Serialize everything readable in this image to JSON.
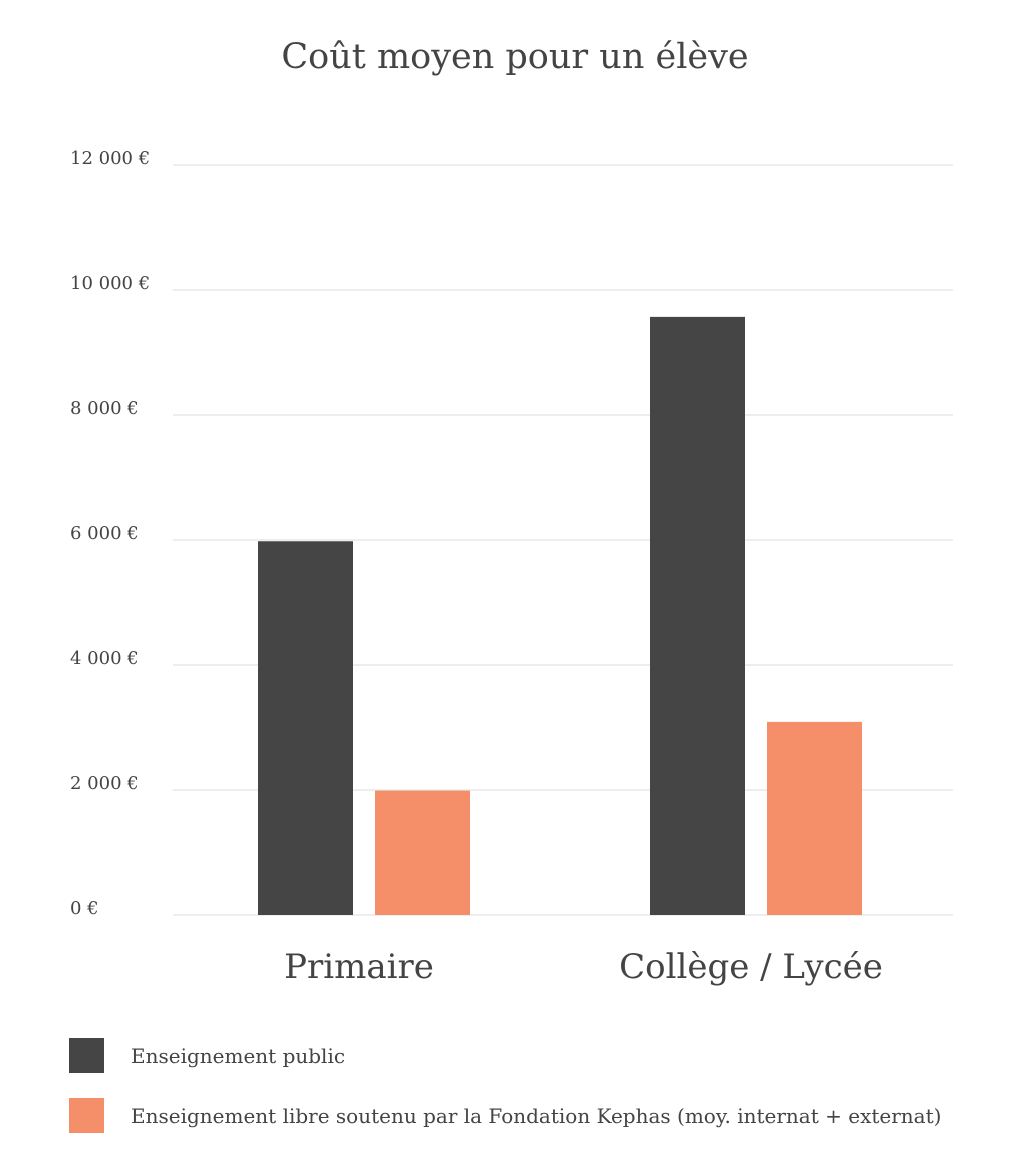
{
  "chart_data": {
    "type": "bar",
    "title": "Coût moyen pour un élève",
    "categories": [
      "Primaire",
      "Collège / Lycée"
    ],
    "series": [
      {
        "name": "Enseignement public",
        "values": [
          5980,
          9570
        ],
        "color": "#454545"
      },
      {
        "name": "Enseignement libre soutenu par la Fondation Kephas (moy. internat + externat)",
        "values": [
          1990,
          3090
        ],
        "color": "#f48f6a"
      }
    ],
    "ylim": [
      0,
      12000
    ],
    "yticks": [
      0,
      2000,
      4000,
      6000,
      8000,
      10000,
      12000
    ],
    "ytick_labels": [
      "0 €",
      "2 000 €",
      "4 000 €",
      "6 000 €",
      "8 000 €",
      "10 000 €",
      "12 000 €"
    ],
    "xlabel": "",
    "ylabel": "",
    "grid": true,
    "legend_position": "bottom-left"
  }
}
